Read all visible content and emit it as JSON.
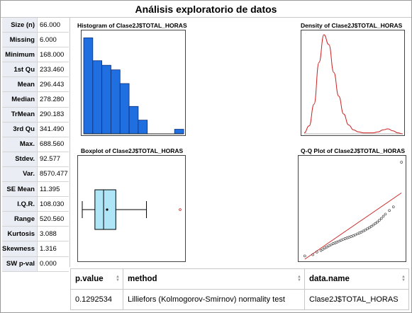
{
  "title": "Análisis exploratorio de datos",
  "stats": [
    {
      "label": "Size (n)",
      "value": "66.000"
    },
    {
      "label": "Missing",
      "value": "6.000"
    },
    {
      "label": "Minimum",
      "value": "168.000"
    },
    {
      "label": "1st Qu",
      "value": "233.460"
    },
    {
      "label": "Mean",
      "value": "296.443"
    },
    {
      "label": "Median",
      "value": "278.280"
    },
    {
      "label": "TrMean",
      "value": "290.183"
    },
    {
      "label": "3rd Qu",
      "value": "341.490"
    },
    {
      "label": "Max.",
      "value": "688.560"
    },
    {
      "label": "Stdev.",
      "value": "92.577"
    },
    {
      "label": "Var.",
      "value": "8570.477"
    },
    {
      "label": "SE Mean",
      "value": "11.395"
    },
    {
      "label": "I.Q.R.",
      "value": "108.030"
    },
    {
      "label": "Range",
      "value": "520.560"
    },
    {
      "label": "Kurtosis",
      "value": "3.088"
    },
    {
      "label": "Skewness",
      "value": "1.316"
    },
    {
      "label": "SW p-val",
      "value": "0.000"
    }
  ],
  "plots": {
    "histogram_title": "Histogram of Clase2J$TOTAL_HORAS",
    "density_title": "Density of Clase2J$TOTAL_HORAS",
    "boxplot_title": "Boxplot of Clase2J$TOTAL_HORAS",
    "qq_title": "Q-Q Plot of Clase2J$TOTAL_HORAS"
  },
  "chart_data": [
    {
      "type": "bar",
      "values": [
        21,
        16,
        15,
        14,
        11,
        6,
        3,
        0,
        0,
        0,
        1
      ],
      "ylim": [
        0,
        22
      ]
    },
    {
      "type": "line",
      "x": [
        0,
        0.05,
        0.1,
        0.15,
        0.2,
        0.25,
        0.3,
        0.35,
        0.4,
        0.45,
        0.5,
        0.55,
        0.6,
        0.65,
        0.7,
        0.75,
        0.8,
        0.85,
        0.9,
        0.95,
        1
      ],
      "y": [
        0.01,
        0.08,
        0.3,
        0.72,
        1.0,
        0.9,
        0.62,
        0.38,
        0.2,
        0.09,
        0.04,
        0.02,
        0.01,
        0.01,
        0.01,
        0.02,
        0.04,
        0.05,
        0.03,
        0.01,
        0.0
      ],
      "color": "#cc2222"
    },
    {
      "type": "boxplot",
      "min": 168.0,
      "q1": 233.46,
      "median": 278.28,
      "mean": 296.443,
      "q3": 341.49,
      "whisker_high": 500,
      "outliers": [
        688.56
      ],
      "box_color": "#aee6f7",
      "outlier_color": "#cc2222"
    },
    {
      "type": "scatter",
      "x": [
        -2.4,
        -2.0,
        -1.8,
        -1.6,
        -1.5,
        -1.4,
        -1.3,
        -1.2,
        -1.1,
        -1.0,
        -0.9,
        -0.8,
        -0.7,
        -0.6,
        -0.5,
        -0.4,
        -0.3,
        -0.2,
        -0.1,
        0.0,
        0.1,
        0.2,
        0.3,
        0.4,
        0.5,
        0.6,
        0.7,
        0.8,
        0.9,
        1.0,
        1.1,
        1.2,
        1.3,
        1.4,
        1.5,
        1.6,
        1.8,
        2.0,
        2.4
      ],
      "y": [
        168,
        175,
        190,
        198,
        205,
        212,
        218,
        224,
        230,
        236,
        240,
        245,
        250,
        255,
        260,
        264,
        268,
        272,
        276,
        280,
        285,
        290,
        295,
        300,
        306,
        312,
        318,
        325,
        332,
        340,
        348,
        356,
        366,
        376,
        388,
        400,
        420,
        440,
        688
      ],
      "line": {
        "x": [
          -2.4,
          2.4
        ],
        "y": [
          75,
          518
        ]
      },
      "line_color": "#cc2222"
    }
  ],
  "table": {
    "headers": [
      "p.value",
      "method",
      "data.name"
    ],
    "rows": [
      [
        "0.1292534",
        "Lilliefors (Kolmogorov-Smirnov) normality test",
        "Clase2J$TOTAL_HORAS"
      ]
    ]
  }
}
